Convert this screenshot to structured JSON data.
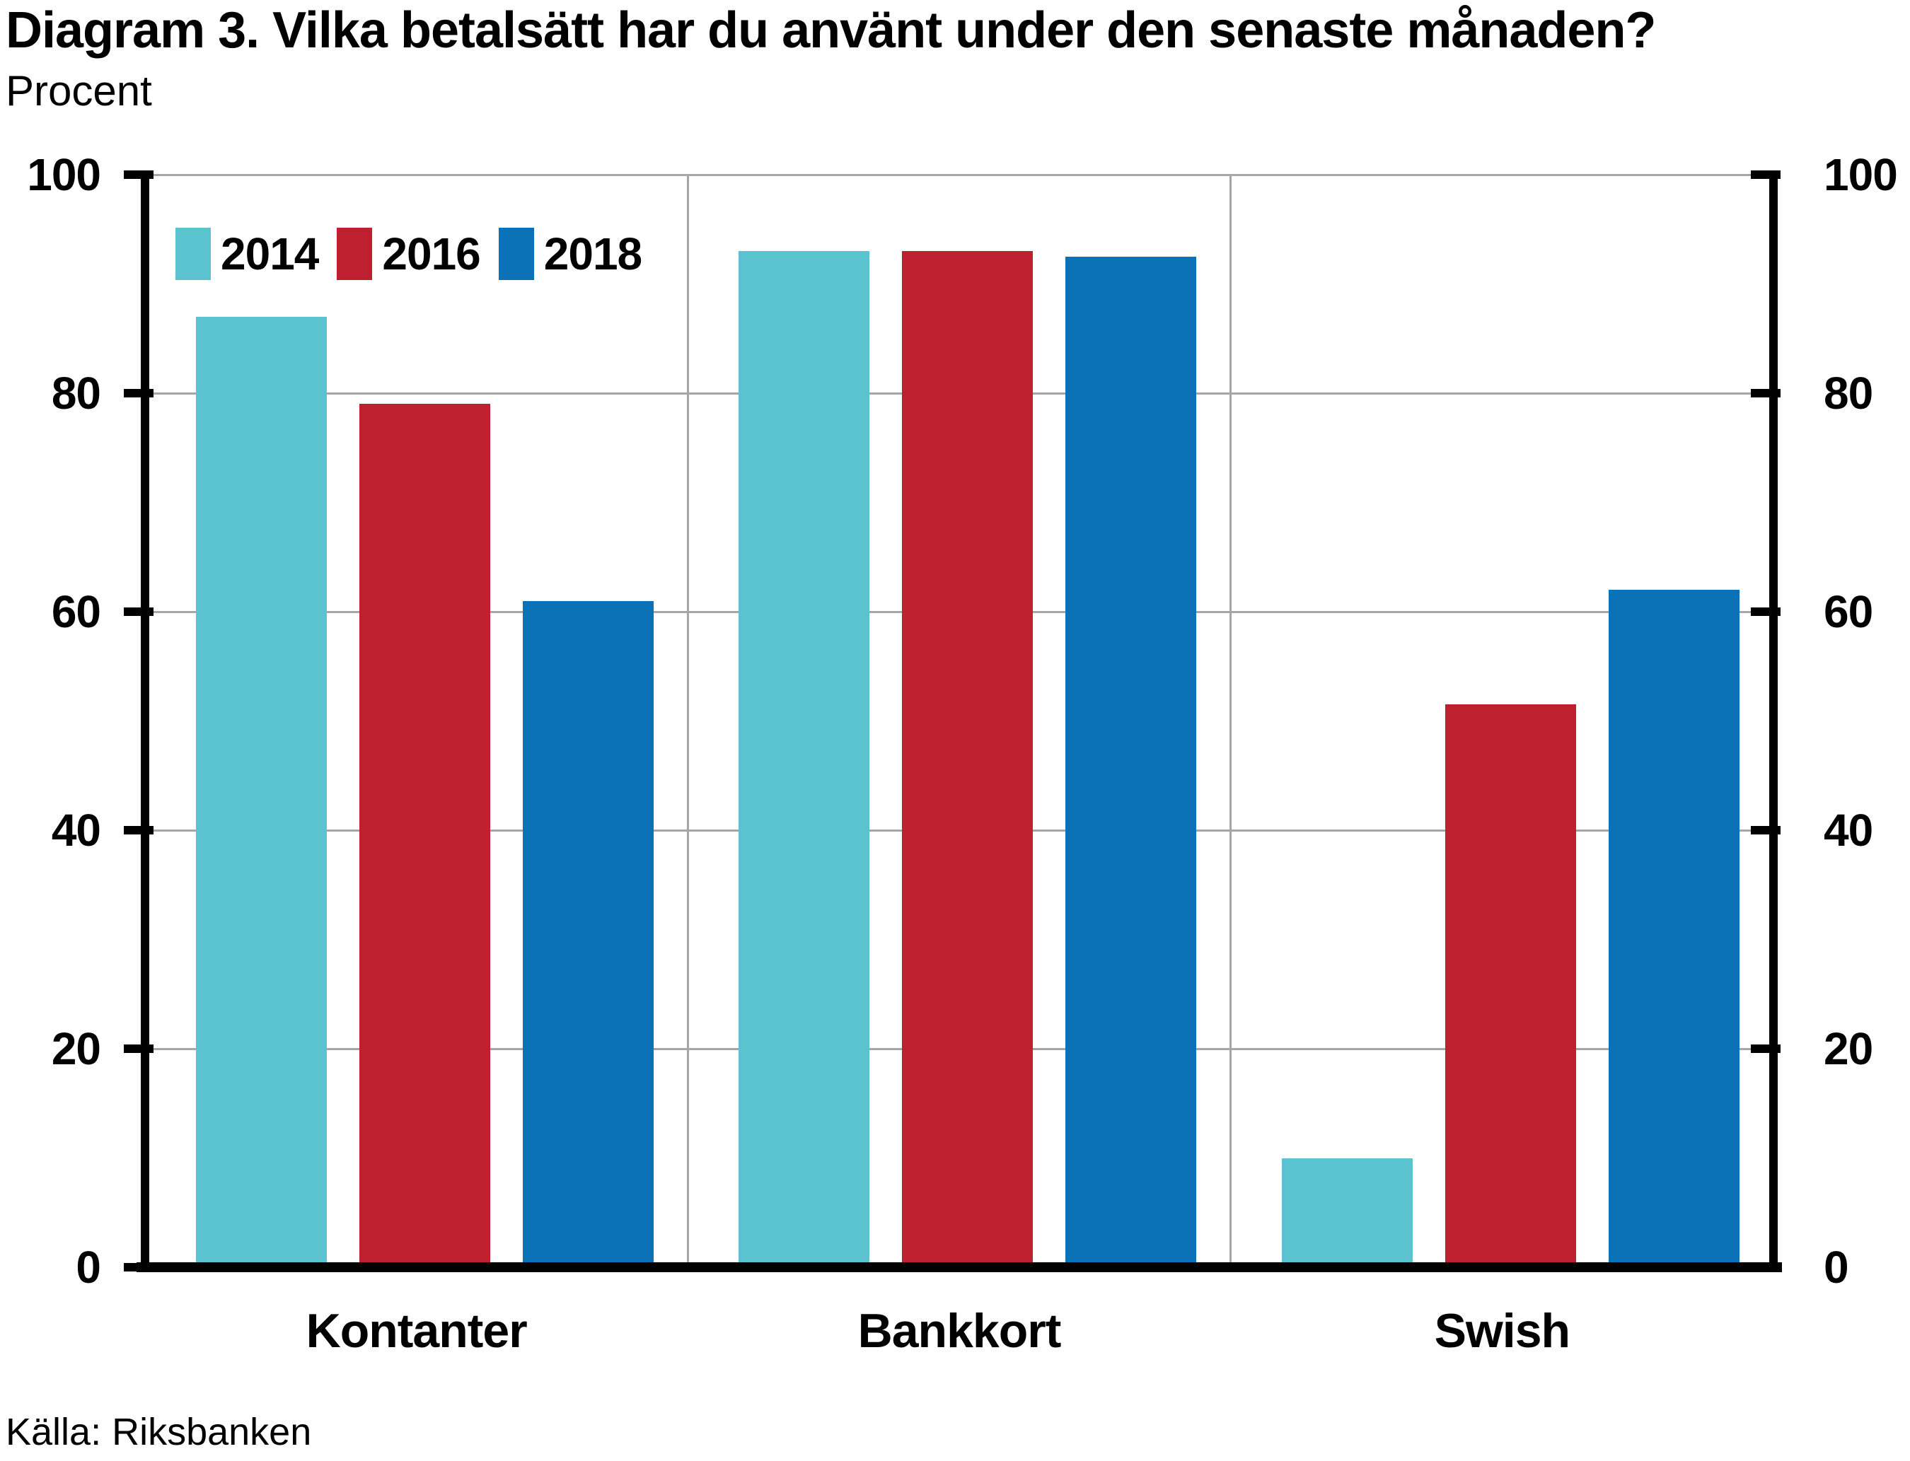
{
  "header": {
    "title": "Diagram 3. Vilka betalsätt har du använt under den senaste månaden?",
    "subtitle": "Procent"
  },
  "footer": {
    "source": "Källa: Riksbanken"
  },
  "chart_data": {
    "type": "bar",
    "title": "Diagram 3. Vilka betalsätt har du använt under den senaste månaden?",
    "ylabel": "Procent",
    "categories": [
      "Kontanter",
      "Bankkort",
      "Swish"
    ],
    "series": [
      {
        "name": "2014",
        "color": "#5BC2CF",
        "values": [
          87,
          93,
          10
        ]
      },
      {
        "name": "2016",
        "color": "#BE2030",
        "values": [
          79,
          93,
          51.5
        ]
      },
      {
        "name": "2018",
        "color": "#0B72B8",
        "values": [
          61,
          92.5,
          62
        ]
      }
    ],
    "ylim": [
      0,
      100
    ],
    "yticks": [
      0,
      20,
      40,
      60,
      80,
      100
    ],
    "y_axis_labels": "both",
    "grid": true,
    "gridline_color": "#a6a6a6",
    "legend_position": "top-left"
  }
}
